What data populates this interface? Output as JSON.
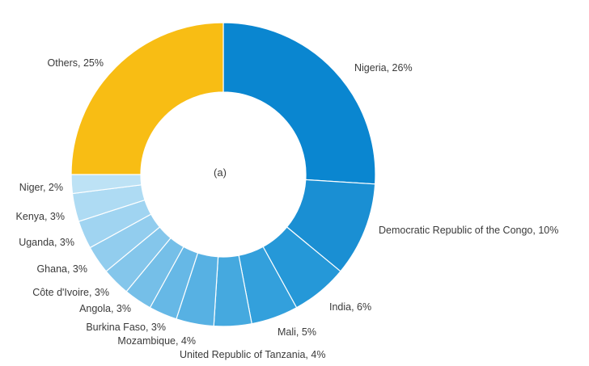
{
  "chart_data": {
    "type": "pie",
    "variant": "donut",
    "center_label": "(a)",
    "slices": [
      {
        "label": "Nigeria, 26%",
        "name": "Nigeria",
        "value": 26,
        "color": "#0a86d0"
      },
      {
        "label": "Democratic Republic of the Congo, 10%",
        "name": "Democratic Republic of the Congo",
        "value": 10,
        "color": "#1a8fd3"
      },
      {
        "label": "India, 6%",
        "name": "India",
        "value": 6,
        "color": "#2598d8"
      },
      {
        "label": "Mali, 5%",
        "name": "Mali",
        "value": 5,
        "color": "#33a0dc"
      },
      {
        "label": "United Republic of Tanzania, 4%",
        "name": "United Republic of Tanzania",
        "value": 4,
        "color": "#45a9df"
      },
      {
        "label": "Mozambique, 4%",
        "name": "Mozambique",
        "value": 4,
        "color": "#57b1e3"
      },
      {
        "label": "Burkina Faso, 3%",
        "name": "Burkina Faso",
        "value": 3,
        "color": "#66b8e6"
      },
      {
        "label": "Angola, 3%",
        "name": "Angola",
        "value": 3,
        "color": "#75bfe8"
      },
      {
        "label": "Côte d'Ivoire, 3%",
        "name": "Côte d'Ivoire",
        "value": 3,
        "color": "#84c6eb"
      },
      {
        "label": "Ghana, 3%",
        "name": "Ghana",
        "value": 3,
        "color": "#92cdee"
      },
      {
        "label": "Uganda, 3%",
        "name": "Uganda",
        "value": 3,
        "color": "#a0d4f1"
      },
      {
        "label": "Kenya, 3%",
        "name": "Kenya",
        "value": 3,
        "color": "#aedbf3"
      },
      {
        "label": "Niger, 2%",
        "name": "Niger",
        "value": 2,
        "color": "#bde2f5"
      },
      {
        "label": "Others, 25%",
        "name": "Others",
        "value": 25,
        "color": "#f8bd14"
      }
    ]
  }
}
